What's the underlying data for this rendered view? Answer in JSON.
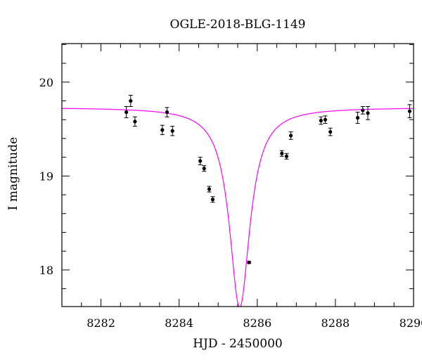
{
  "chart_data": {
    "type": "scatter",
    "title": "OGLE-2018-BLG-1149",
    "xlabel": "HJD - 2450000",
    "ylabel": "I magnitude",
    "xlim": [
      8281.0,
      8290.0
    ],
    "ylim": [
      20.41,
      17.61
    ],
    "y_inverted": true,
    "grid": false,
    "colors": {
      "model": "#ff00ff",
      "points": "#000000",
      "axes": "#000000"
    },
    "x_ticks": [
      8282,
      8284,
      8286,
      8288,
      8290
    ],
    "x_tick_labels": [
      "8282",
      "8284",
      "8286",
      "8288",
      "8290"
    ],
    "y_ticks": [
      18,
      19,
      20
    ],
    "y_tick_labels": [
      "18",
      "19",
      "20"
    ],
    "model": {
      "t0": 8285.55,
      "baseline": 19.73,
      "peak": 17.6,
      "width": 0.32
    },
    "points": [
      {
        "x": 8282.65,
        "y": 19.68,
        "err": 0.06
      },
      {
        "x": 8282.76,
        "y": 19.8,
        "err": 0.06
      },
      {
        "x": 8282.87,
        "y": 19.58,
        "err": 0.05
      },
      {
        "x": 8283.57,
        "y": 19.49,
        "err": 0.05
      },
      {
        "x": 8283.69,
        "y": 19.68,
        "err": 0.05
      },
      {
        "x": 8283.83,
        "y": 19.48,
        "err": 0.05
      },
      {
        "x": 8284.54,
        "y": 19.16,
        "err": 0.04
      },
      {
        "x": 8284.64,
        "y": 19.08,
        "err": 0.03
      },
      {
        "x": 8284.77,
        "y": 18.86,
        "err": 0.03
      },
      {
        "x": 8284.86,
        "y": 18.75,
        "err": 0.03
      },
      {
        "x": 8285.79,
        "y": 18.08,
        "err": 0.01
      },
      {
        "x": 8286.63,
        "y": 19.24,
        "err": 0.03
      },
      {
        "x": 8286.75,
        "y": 19.21,
        "err": 0.03
      },
      {
        "x": 8286.86,
        "y": 19.43,
        "err": 0.04
      },
      {
        "x": 8287.63,
        "y": 19.59,
        "err": 0.04
      },
      {
        "x": 8287.74,
        "y": 19.6,
        "err": 0.04
      },
      {
        "x": 8287.87,
        "y": 19.47,
        "err": 0.04
      },
      {
        "x": 8288.57,
        "y": 19.62,
        "err": 0.06
      },
      {
        "x": 8288.7,
        "y": 19.7,
        "err": 0.04
      },
      {
        "x": 8288.83,
        "y": 19.67,
        "err": 0.07
      },
      {
        "x": 8289.9,
        "y": 19.69,
        "err": 0.07
      }
    ]
  }
}
